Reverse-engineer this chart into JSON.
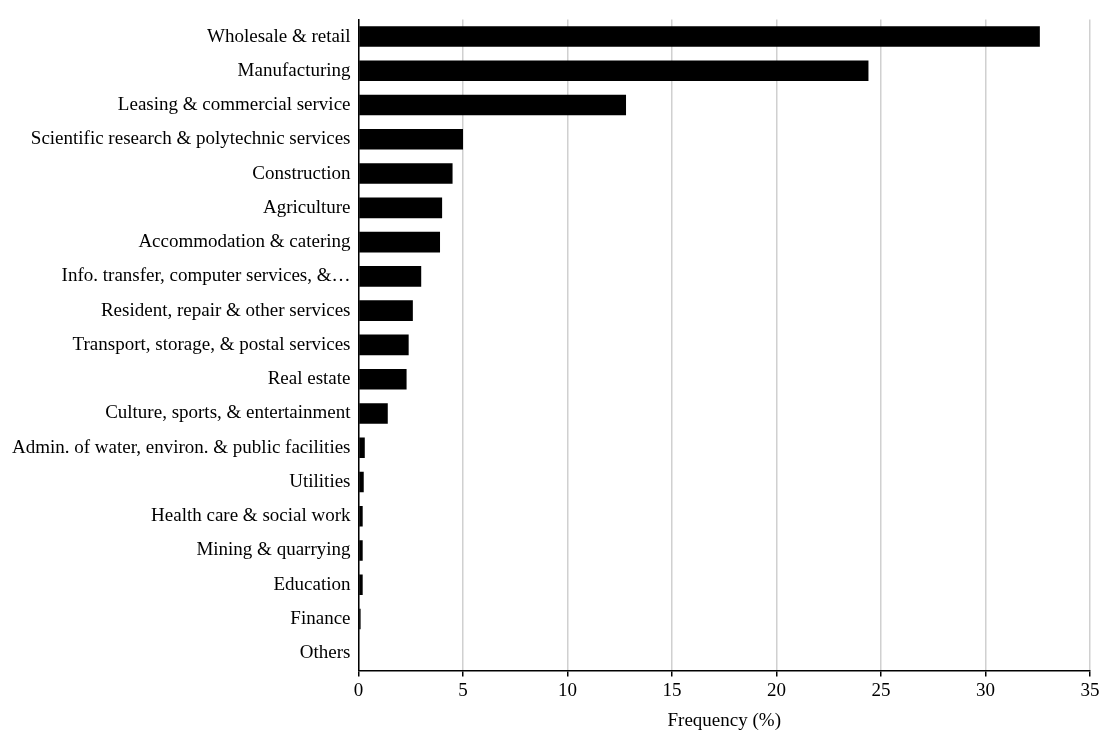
{
  "chart_data": {
    "type": "bar",
    "orientation": "horizontal",
    "xlabel": "Frequency (%)",
    "categories": [
      "Wholesale & retail",
      "Manufacturing",
      "Leasing & commercial service",
      "Scientific research & polytechnic services",
      "Construction",
      "Agriculture",
      "Accommodation & catering",
      "Info. transfer, computer services, &…",
      "Resident, repair & other services",
      "Transport, storage, & postal services",
      "Real estate",
      "Culture, sports, & entertainment",
      "Admin. of water, environ. & public facilities",
      "Utilities",
      "Health care & social work",
      "Mining & quarrying",
      "Education",
      "Finance",
      "Others"
    ],
    "values": [
      32.6,
      24.4,
      12.8,
      5.0,
      4.5,
      4.0,
      3.9,
      3.0,
      2.6,
      2.4,
      2.3,
      1.4,
      0.3,
      0.25,
      0.2,
      0.2,
      0.2,
      0.1,
      0
    ],
    "color": "#000000",
    "xlim": [
      0,
      35
    ],
    "xticks": [
      0,
      5,
      10,
      15,
      20,
      25,
      30,
      35
    ],
    "grid": "x",
    "legend": false
  }
}
